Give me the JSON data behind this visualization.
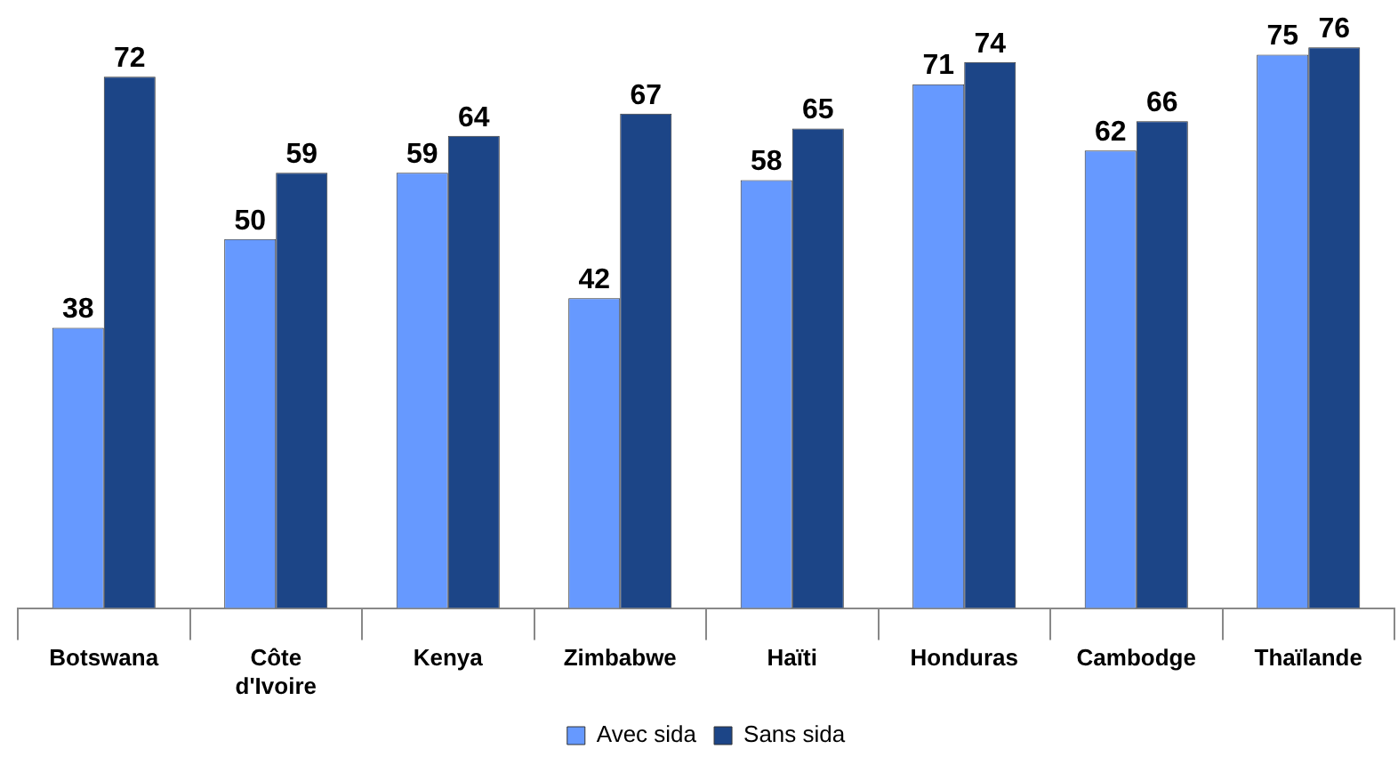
{
  "chart_data": {
    "type": "bar",
    "categories": [
      "Botswana",
      "Côte d'Ivoire",
      "Kenya",
      "Zimbabwe",
      "Haïti",
      "Honduras",
      "Cambodge",
      "Thaïlande"
    ],
    "series": [
      {
        "name": "Avec sida",
        "color": "#6699ff",
        "values": [
          38,
          50,
          59,
          42,
          58,
          71,
          62,
          75
        ]
      },
      {
        "name": "Sans sida",
        "color": "#1c4587",
        "values": [
          72,
          59,
          64,
          67,
          65,
          74,
          66,
          76
        ]
      }
    ],
    "data_labels": true,
    "legend": "bottom",
    "tick_labels": "x",
    "grid": false
  }
}
